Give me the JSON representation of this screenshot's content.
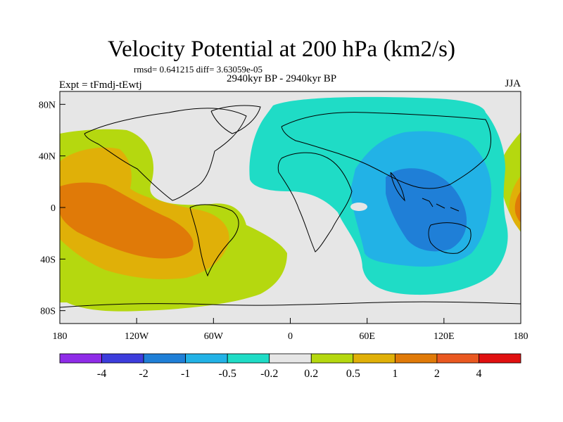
{
  "title": "Velocity Potential at 200 hPa (km2/s)",
  "stats": "rmsd= 0.641215 diff= 3.63059e-05",
  "left_label": "Expt = tFmdj-tEwtj",
  "center_label": "2940kyr BP - 2940kyr BP",
  "right_label": "JJA",
  "map": {
    "x_ticks": [
      {
        "value": -180,
        "label": "180"
      },
      {
        "value": -120,
        "label": "120W"
      },
      {
        "value": -60,
        "label": "60W"
      },
      {
        "value": 0,
        "label": "0"
      },
      {
        "value": 60,
        "label": "60E"
      },
      {
        "value": 120,
        "label": "120E"
      },
      {
        "value": 180,
        "label": "180"
      }
    ],
    "y_ticks": [
      {
        "value": 80,
        "label": "80N"
      },
      {
        "value": 40,
        "label": "40N"
      },
      {
        "value": 0,
        "label": "0"
      },
      {
        "value": -40,
        "label": "40S"
      },
      {
        "value": -80,
        "label": "80S"
      }
    ],
    "lon_range": [
      -180,
      180
    ],
    "lat_range": [
      -90,
      90
    ]
  },
  "colorbar": {
    "labels": [
      "-4",
      "-2",
      "-1",
      "-0.5",
      "-0.2",
      "0.2",
      "0.5",
      "1",
      "2",
      "4"
    ],
    "colors": [
      "#8f2ce8",
      "#3d3ddc",
      "#1f7fd7",
      "#22b2e6",
      "#1fdcc6",
      "#e6e6e6",
      "#b5d80f",
      "#e0b008",
      "#e07a08",
      "#e95820",
      "#e01010"
    ]
  }
}
